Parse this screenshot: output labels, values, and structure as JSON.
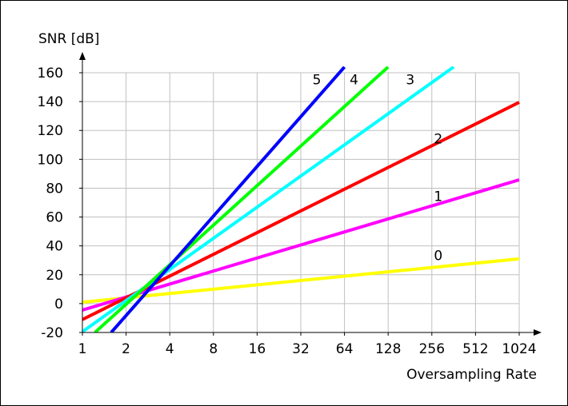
{
  "chart_data": {
    "type": "line",
    "title": "",
    "xlabel": "Oversampling Rate",
    "ylabel": "SNR [dB]",
    "x_scale": "log2",
    "x_ticks": [
      1,
      2,
      4,
      8,
      16,
      32,
      64,
      128,
      256,
      512,
      1024
    ],
    "x_tick_labels": [
      "1",
      "2",
      "4",
      "8",
      "16",
      "32",
      "64",
      "128",
      "256",
      "512",
      "1024"
    ],
    "y_ticks": [
      -20,
      0,
      20,
      40,
      60,
      80,
      100,
      120,
      140,
      160
    ],
    "y_tick_labels": [
      "-20",
      "0",
      "20",
      "40",
      "60",
      "80",
      "100",
      "120",
      "140",
      "160"
    ],
    "xlim": [
      1,
      1024
    ],
    "ylim": [
      -20,
      160
    ],
    "grid": true,
    "series": [
      {
        "name": "0",
        "color": "#ffff00",
        "x": [
          1,
          1024
        ],
        "y": [
          1.0,
          31.0
        ]
      },
      {
        "name": "1",
        "color": "#ff00ff",
        "x": [
          1,
          1024
        ],
        "y": [
          -4.5,
          85.8
        ]
      },
      {
        "name": "2",
        "color": "#ff0000",
        "x": [
          1,
          1024
        ],
        "y": [
          -11.0,
          139.5
        ]
      },
      {
        "name": "3",
        "color": "#00ffff",
        "x": [
          1,
          362
        ],
        "y": [
          -19.5,
          164.0
        ]
      },
      {
        "name": "4",
        "color": "#00ff00",
        "x": [
          1.22,
          128
        ],
        "y": [
          -20.0,
          164.0
        ]
      },
      {
        "name": "5",
        "color": "#0000ff",
        "x": [
          1.58,
          64
        ],
        "y": [
          -20.0,
          164.0
        ]
      }
    ]
  }
}
